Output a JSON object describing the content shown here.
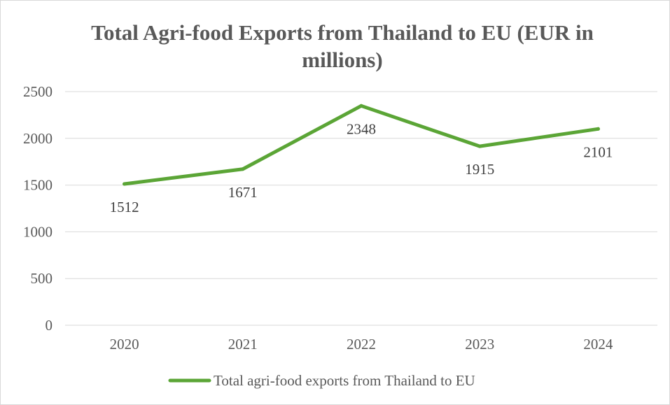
{
  "chart_data": {
    "type": "line",
    "title_lines": [
      "Total Agri-food Exports from Thailand to EU (EUR in",
      "millions)"
    ],
    "categories": [
      "2020",
      "2021",
      "2022",
      "2023",
      "2024"
    ],
    "series": [
      {
        "name": "Total agri-food exports from Thailand to EU",
        "values": [
          1512,
          1671,
          2348,
          1915,
          2101
        ],
        "color": "#5ba536"
      }
    ],
    "ylim": [
      0,
      2500
    ],
    "yticks": [
      "0",
      "500",
      "1000",
      "1500",
      "2000",
      "2500"
    ],
    "grid": true,
    "legend": "bottom",
    "data_labels": [
      "1512",
      "1671",
      "2348",
      "1915",
      "2101"
    ]
  }
}
